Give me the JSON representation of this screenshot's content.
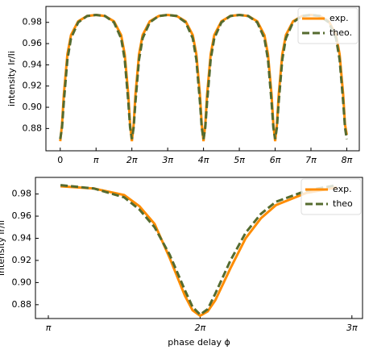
{
  "chart_data": [
    {
      "type": "line",
      "y_label": "intensity Ir/Ii",
      "x": [
        0,
        0.05,
        0.1,
        0.2,
        0.3,
        0.5,
        0.75,
        1,
        1.25,
        1.5,
        1.7,
        1.8,
        1.9,
        1.95,
        2,
        2.05,
        2.1,
        2.2,
        2.3,
        2.5,
        2.75,
        3,
        3.25,
        3.5,
        3.7,
        3.8,
        3.9,
        3.95,
        4,
        4.05,
        4.1,
        4.2,
        4.3,
        4.5,
        4.75,
        5,
        5.25,
        5.5,
        5.7,
        5.8,
        5.9,
        5.95,
        6,
        6.05,
        6.1,
        6.2,
        6.3,
        6.5,
        6.75,
        7,
        7.25,
        7.5,
        7.7,
        7.8,
        7.9,
        7.95,
        8
      ],
      "series": [
        {
          "name": "exp.",
          "color": "#ff8c00",
          "linestyle": "solid",
          "values": [
            0.868,
            0.884,
            0.912,
            0.95,
            0.968,
            0.981,
            0.986,
            0.987,
            0.986,
            0.981,
            0.968,
            0.95,
            0.912,
            0.884,
            0.868,
            0.884,
            0.912,
            0.95,
            0.968,
            0.981,
            0.986,
            0.987,
            0.986,
            0.981,
            0.968,
            0.95,
            0.912,
            0.884,
            0.868,
            0.884,
            0.912,
            0.95,
            0.968,
            0.981,
            0.986,
            0.987,
            0.986,
            0.981,
            0.968,
            0.95,
            0.912,
            0.884,
            0.868,
            0.884,
            0.912,
            0.95,
            0.968,
            0.981,
            0.986,
            0.987,
            0.986,
            0.981,
            0.968,
            0.95,
            0.912,
            0.884,
            0.874
          ]
        },
        {
          "name": "theo.",
          "color": "#556b2f",
          "linestyle": "dashed",
          "values": [
            0.87,
            0.881,
            0.905,
            0.945,
            0.965,
            0.98,
            0.986,
            0.987,
            0.986,
            0.98,
            0.965,
            0.945,
            0.905,
            0.881,
            0.87,
            0.881,
            0.905,
            0.945,
            0.965,
            0.98,
            0.986,
            0.987,
            0.986,
            0.98,
            0.965,
            0.945,
            0.905,
            0.881,
            0.87,
            0.881,
            0.905,
            0.945,
            0.965,
            0.98,
            0.986,
            0.987,
            0.986,
            0.98,
            0.965,
            0.945,
            0.905,
            0.881,
            0.87,
            0.881,
            0.905,
            0.945,
            0.965,
            0.98,
            0.986,
            0.987,
            0.986,
            0.98,
            0.965,
            0.945,
            0.905,
            0.881,
            0.87
          ]
        }
      ],
      "xlim": [
        -0.4,
        8.35
      ],
      "xticks": [
        0,
        {
          "value": 1,
          "label": "π"
        },
        {
          "value": 2,
          "label": "2π"
        },
        {
          "value": 3,
          "label": "3π"
        },
        {
          "value": 4,
          "label": "4π"
        },
        {
          "value": 5,
          "label": "5π"
        },
        {
          "value": 6,
          "label": "6π"
        },
        {
          "value": 7,
          "label": "7π"
        },
        {
          "value": 8,
          "label": "8π"
        }
      ],
      "ylim": [
        0.859,
        0.995
      ],
      "yticks": [
        0.88,
        {
          "value": 0.9,
          "label": "0.90"
        },
        0.92,
        0.94,
        0.96,
        0.98
      ],
      "legend": "upper right"
    },
    {
      "type": "line",
      "x_label": "phase delay ϕ",
      "y_label": "intensity Ir/Ii",
      "x": [
        1.08,
        1.3,
        1.5,
        1.6,
        1.7,
        1.8,
        1.9,
        1.95,
        2,
        2.05,
        2.1,
        2.2,
        2.3,
        2.4,
        2.5,
        2.7,
        2.9
      ],
      "series": [
        {
          "name": "exp.",
          "color": "#ff8c00",
          "linestyle": "solid",
          "values": [
            0.987,
            0.985,
            0.979,
            0.969,
            0.953,
            0.922,
            0.888,
            0.875,
            0.87,
            0.874,
            0.884,
            0.913,
            0.94,
            0.958,
            0.97,
            0.981,
            0.986
          ]
        },
        {
          "name": "theo",
          "color": "#556b2f",
          "linestyle": "dashed",
          "values": [
            0.988,
            0.985,
            0.977,
            0.966,
            0.95,
            0.925,
            0.893,
            0.878,
            0.871,
            0.876,
            0.89,
            0.92,
            0.945,
            0.962,
            0.973,
            0.983,
            0.988
          ]
        }
      ],
      "xlim": [
        0.915,
        3.07
      ],
      "xticks": [
        {
          "value": 1,
          "label": "π"
        },
        {
          "value": 2,
          "label": "2π"
        },
        {
          "value": 3,
          "label": "3π"
        }
      ],
      "ylim": [
        0.8675,
        0.995
      ],
      "yticks": [
        0.88,
        {
          "value": 0.9,
          "label": "0.90"
        },
        0.92,
        0.94,
        0.96,
        0.98
      ],
      "legend": "upper right"
    }
  ]
}
